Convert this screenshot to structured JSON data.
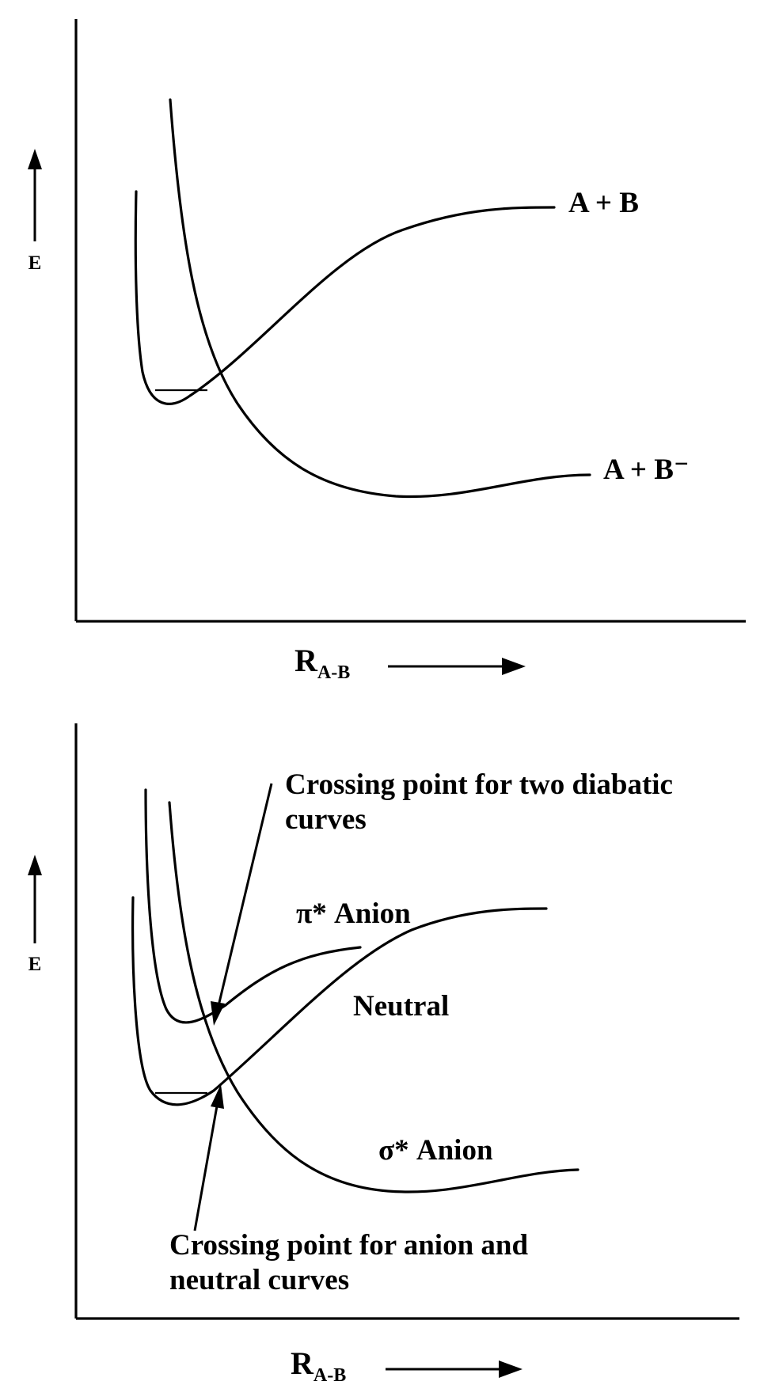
{
  "top_panel": {
    "e_axis_label": "E",
    "r_axis_label_main": "R",
    "r_axis_label_sub": "A-B",
    "curve_labels": {
      "neutral": "A + B",
      "anion": "A + B⁻"
    }
  },
  "bottom_panel": {
    "e_axis_label": "E",
    "r_axis_label_main": "R",
    "r_axis_label_sub": "A-B",
    "curve_labels": {
      "pi_anion": "π* Anion",
      "neutral": "Neutral",
      "sigma_anion": "σ* Anion"
    },
    "annotations": {
      "diabatic_crossing": [
        "Crossing point for two diabatic",
        "curves"
      ],
      "anion_neutral_crossing": [
        "Crossing point for anion and",
        "neutral curves"
      ]
    }
  },
  "colors": {
    "ink": "#000000",
    "background": "#ffffff"
  }
}
